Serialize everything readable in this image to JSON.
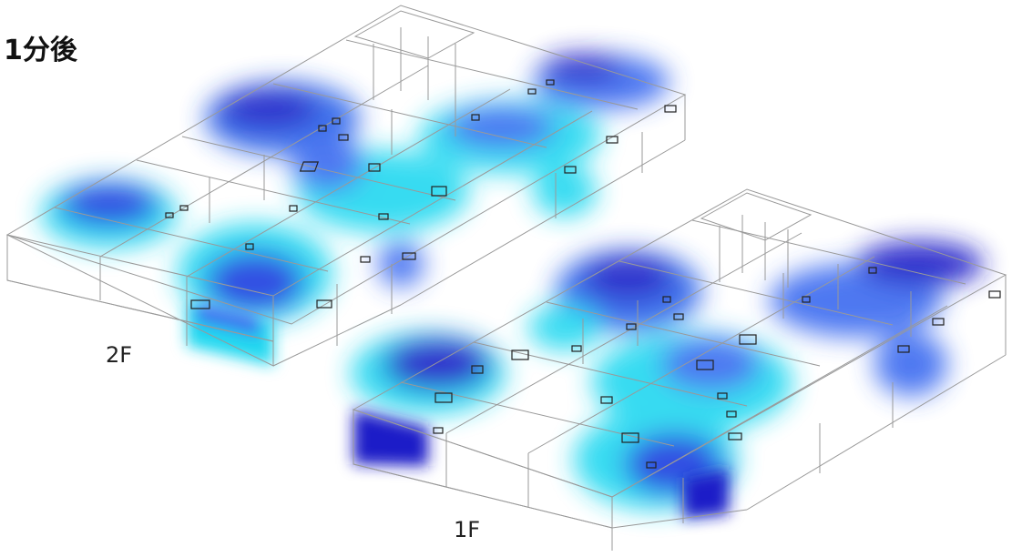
{
  "title": "1分後",
  "floors": {
    "upper": {
      "label": "2F"
    },
    "lower": {
      "label": "1F"
    }
  },
  "colors": {
    "dense": "#1a1fc8",
    "mid": "#3a6bf0",
    "light": "#22d8f0",
    "outline": "#999999"
  }
}
